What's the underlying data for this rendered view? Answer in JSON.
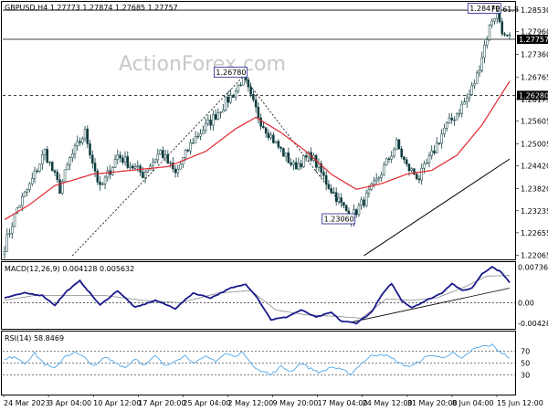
{
  "chart_data": {
    "type": "candlestick",
    "symbol_header": "GBPUSD,H4  1.27773 1.27874 1.27685 1.27757",
    "watermark": "ActionForex.com",
    "price_axis": {
      "ylim": [
        1.22,
        1.287
      ],
      "ticks": [
        "1.28530",
        "1.27960",
        "1.27360",
        "1.26765",
        "1.26175",
        "1.25605",
        "1.25005",
        "1.24420",
        "1.23820",
        "1.23235",
        "1.22655",
        "1.22065"
      ],
      "current_price_label": "1.27757",
      "level_label": "1.26280"
    },
    "x_axis": {
      "labels": [
        "24 Mar 2023",
        "3 Apr 04:00",
        "10 Apr 12:00",
        "17 Apr 20:00",
        "25 Apr 04:00",
        "2 May 12:00",
        "9 May 20:00",
        "17 May 04:00",
        "24 May 12:00",
        "31 May 20:00",
        "8 Jun 04:00",
        "15 Jun 12:00"
      ]
    },
    "price_key_points": [
      {
        "x": 0,
        "y": 1.223
      },
      {
        "x": 5,
        "y": 1.233
      },
      {
        "x": 10,
        "y": 1.239
      },
      {
        "x": 16,
        "y": 1.248
      },
      {
        "x": 22,
        "y": 1.238
      },
      {
        "x": 26,
        "y": 1.246
      },
      {
        "x": 32,
        "y": 1.253
      },
      {
        "x": 38,
        "y": 1.238
      },
      {
        "x": 45,
        "y": 1.247
      },
      {
        "x": 55,
        "y": 1.242
      },
      {
        "x": 62,
        "y": 1.248
      },
      {
        "x": 68,
        "y": 1.242
      },
      {
        "x": 75,
        "y": 1.251
      },
      {
        "x": 82,
        "y": 1.256
      },
      {
        "x": 88,
        "y": 1.261
      },
      {
        "x": 92,
        "y": 1.264
      },
      {
        "x": 95,
        "y": 1.2678
      },
      {
        "x": 98,
        "y": 1.262
      },
      {
        "x": 102,
        "y": 1.256
      },
      {
        "x": 108,
        "y": 1.25
      },
      {
        "x": 115,
        "y": 1.244
      },
      {
        "x": 122,
        "y": 1.247
      },
      {
        "x": 128,
        "y": 1.24
      },
      {
        "x": 134,
        "y": 1.234
      },
      {
        "x": 138,
        "y": 1.2306
      },
      {
        "x": 143,
        "y": 1.235
      },
      {
        "x": 148,
        "y": 1.24
      },
      {
        "x": 152,
        "y": 1.245
      },
      {
        "x": 156,
        "y": 1.25
      },
      {
        "x": 160,
        "y": 1.244
      },
      {
        "x": 165,
        "y": 1.241
      },
      {
        "x": 170,
        "y": 1.247
      },
      {
        "x": 175,
        "y": 1.254
      },
      {
        "x": 180,
        "y": 1.258
      },
      {
        "x": 185,
        "y": 1.263
      },
      {
        "x": 188,
        "y": 1.268
      },
      {
        "x": 191,
        "y": 1.276
      },
      {
        "x": 194,
        "y": 1.283
      },
      {
        "x": 196,
        "y": 1.2847
      },
      {
        "x": 199,
        "y": 1.278
      },
      {
        "x": 201,
        "y": 1.2776
      }
    ],
    "moving_average_key_points": [
      {
        "x": 0,
        "y": 1.23
      },
      {
        "x": 10,
        "y": 1.234
      },
      {
        "x": 20,
        "y": 1.239
      },
      {
        "x": 35,
        "y": 1.242
      },
      {
        "x": 50,
        "y": 1.243
      },
      {
        "x": 65,
        "y": 1.244
      },
      {
        "x": 80,
        "y": 1.248
      },
      {
        "x": 92,
        "y": 1.254
      },
      {
        "x": 100,
        "y": 1.257
      },
      {
        "x": 110,
        "y": 1.253
      },
      {
        "x": 120,
        "y": 1.248
      },
      {
        "x": 130,
        "y": 1.242
      },
      {
        "x": 140,
        "y": 1.238
      },
      {
        "x": 150,
        "y": 1.2395
      },
      {
        "x": 160,
        "y": 1.242
      },
      {
        "x": 170,
        "y": 1.243
      },
      {
        "x": 180,
        "y": 1.247
      },
      {
        "x": 190,
        "y": 1.255
      },
      {
        "x": 201,
        "y": 1.2665
      }
    ],
    "annotations": [
      {
        "label": "1.26780",
        "x": 95,
        "y": 1.2678
      },
      {
        "label": "1.23060",
        "x": 138,
        "y": 1.2306
      },
      {
        "label": "1.28470",
        "x": 196,
        "y": 1.2847
      },
      {
        "label": "FE 61.8",
        "x": 201,
        "y": 1.2853
      }
    ],
    "horizontal_levels": [
      {
        "value": 1.2628,
        "style": "dashed"
      },
      {
        "value": 1.2776,
        "style": "solid"
      },
      {
        "value": 1.2853,
        "style": "solid"
      }
    ],
    "trendlines": [
      {
        "x1": 143,
        "y1": 1.2205,
        "x2": 201,
        "y2": 1.246
      },
      {
        "x1": 27,
        "y1": 1.2205,
        "x2": 95,
        "y2": 1.2678
      },
      {
        "x1": 95,
        "y1": 1.2678,
        "x2": 138,
        "y2": 1.2306
      }
    ],
    "macd": {
      "label": "MACD(12,26,9) 0.004128 0.005632",
      "ylim": [
        -0.005,
        0.008
      ],
      "ticks": [
        "0.007366",
        "0.00",
        "-0.004286"
      ],
      "main_key_points": [
        {
          "x": 0,
          "y": 0.001
        },
        {
          "x": 8,
          "y": 0.002
        },
        {
          "x": 15,
          "y": 0.0015
        },
        {
          "x": 20,
          "y": -0.0005
        },
        {
          "x": 25,
          "y": 0.0025
        },
        {
          "x": 30,
          "y": 0.0045
        },
        {
          "x": 38,
          "y": -0.0005
        },
        {
          "x": 45,
          "y": 0.0025
        },
        {
          "x": 52,
          "y": -0.001
        },
        {
          "x": 60,
          "y": 0.0005
        },
        {
          "x": 68,
          "y": -0.0012
        },
        {
          "x": 75,
          "y": 0.002
        },
        {
          "x": 82,
          "y": 0.001
        },
        {
          "x": 90,
          "y": 0.003
        },
        {
          "x": 96,
          "y": 0.0038
        },
        {
          "x": 100,
          "y": 0.0015
        },
        {
          "x": 106,
          "y": -0.0035
        },
        {
          "x": 112,
          "y": -0.003
        },
        {
          "x": 118,
          "y": -0.0015
        },
        {
          "x": 124,
          "y": -0.003
        },
        {
          "x": 130,
          "y": -0.002
        },
        {
          "x": 134,
          "y": -0.0038
        },
        {
          "x": 140,
          "y": -0.0042
        },
        {
          "x": 146,
          "y": -0.002
        },
        {
          "x": 150,
          "y": 0.0015
        },
        {
          "x": 154,
          "y": 0.004
        },
        {
          "x": 158,
          "y": 0.0005
        },
        {
          "x": 162,
          "y": -0.001
        },
        {
          "x": 168,
          "y": 0.0005
        },
        {
          "x": 174,
          "y": 0.002
        },
        {
          "x": 178,
          "y": 0.004
        },
        {
          "x": 182,
          "y": 0.0025
        },
        {
          "x": 186,
          "y": 0.003
        },
        {
          "x": 190,
          "y": 0.006
        },
        {
          "x": 194,
          "y": 0.0074
        },
        {
          "x": 198,
          "y": 0.0062
        },
        {
          "x": 201,
          "y": 0.0041
        }
      ],
      "signal_key_points": [
        {
          "x": 0,
          "y": 0.0005
        },
        {
          "x": 12,
          "y": 0.0015
        },
        {
          "x": 25,
          "y": 0.0015
        },
        {
          "x": 40,
          "y": 0.0015
        },
        {
          "x": 55,
          "y": 0.0005
        },
        {
          "x": 70,
          "y": 0.0
        },
        {
          "x": 85,
          "y": 0.002
        },
        {
          "x": 98,
          "y": 0.0025
        },
        {
          "x": 108,
          "y": -0.0015
        },
        {
          "x": 120,
          "y": -0.0025
        },
        {
          "x": 132,
          "y": -0.0028
        },
        {
          "x": 142,
          "y": -0.0032
        },
        {
          "x": 152,
          "y": 0.0008
        },
        {
          "x": 162,
          "y": 0.0005
        },
        {
          "x": 172,
          "y": 0.001
        },
        {
          "x": 182,
          "y": 0.003
        },
        {
          "x": 192,
          "y": 0.0055
        },
        {
          "x": 201,
          "y": 0.0056
        }
      ],
      "trendline": {
        "x1": 138,
        "y1": -0.004,
        "x2": 201,
        "y2": 0.003
      }
    },
    "rsi": {
      "label": "RSI(14) 58.8469",
      "ylim": [
        0,
        100
      ],
      "ticks": [
        "70",
        "50",
        "30"
      ],
      "key_points": [
        {
          "x": 0,
          "y": 55
        },
        {
          "x": 4,
          "y": 62
        },
        {
          "x": 8,
          "y": 50
        },
        {
          "x": 12,
          "y": 66
        },
        {
          "x": 16,
          "y": 48
        },
        {
          "x": 20,
          "y": 40
        },
        {
          "x": 24,
          "y": 62
        },
        {
          "x": 28,
          "y": 68
        },
        {
          "x": 32,
          "y": 58
        },
        {
          "x": 36,
          "y": 44
        },
        {
          "x": 40,
          "y": 60
        },
        {
          "x": 44,
          "y": 52
        },
        {
          "x": 48,
          "y": 42
        },
        {
          "x": 52,
          "y": 58
        },
        {
          "x": 56,
          "y": 46
        },
        {
          "x": 60,
          "y": 62
        },
        {
          "x": 64,
          "y": 44
        },
        {
          "x": 68,
          "y": 56
        },
        {
          "x": 72,
          "y": 62
        },
        {
          "x": 76,
          "y": 50
        },
        {
          "x": 80,
          "y": 60
        },
        {
          "x": 84,
          "y": 54
        },
        {
          "x": 88,
          "y": 66
        },
        {
          "x": 92,
          "y": 60
        },
        {
          "x": 95,
          "y": 70
        },
        {
          "x": 98,
          "y": 48
        },
        {
          "x": 102,
          "y": 38
        },
        {
          "x": 106,
          "y": 30
        },
        {
          "x": 110,
          "y": 44
        },
        {
          "x": 114,
          "y": 36
        },
        {
          "x": 118,
          "y": 50
        },
        {
          "x": 122,
          "y": 40
        },
        {
          "x": 126,
          "y": 34
        },
        {
          "x": 130,
          "y": 44
        },
        {
          "x": 134,
          "y": 38
        },
        {
          "x": 138,
          "y": 32
        },
        {
          "x": 142,
          "y": 50
        },
        {
          "x": 146,
          "y": 62
        },
        {
          "x": 150,
          "y": 66
        },
        {
          "x": 154,
          "y": 58
        },
        {
          "x": 158,
          "y": 48
        },
        {
          "x": 162,
          "y": 44
        },
        {
          "x": 166,
          "y": 56
        },
        {
          "x": 170,
          "y": 64
        },
        {
          "x": 174,
          "y": 58
        },
        {
          "x": 178,
          "y": 68
        },
        {
          "x": 182,
          "y": 56
        },
        {
          "x": 186,
          "y": 72
        },
        {
          "x": 190,
          "y": 78
        },
        {
          "x": 194,
          "y": 80
        },
        {
          "x": 197,
          "y": 70
        },
        {
          "x": 201,
          "y": 59
        }
      ]
    },
    "colors": {
      "bull_body": "#ffffff",
      "candle_outline": "#0d3b3d",
      "moving_average": "#e3262f",
      "macd_main": "#1a1a8c",
      "macd_signal": "#8a8a8a",
      "rsi_line": "#4fa6e8",
      "guide_line": "#000000"
    }
  }
}
